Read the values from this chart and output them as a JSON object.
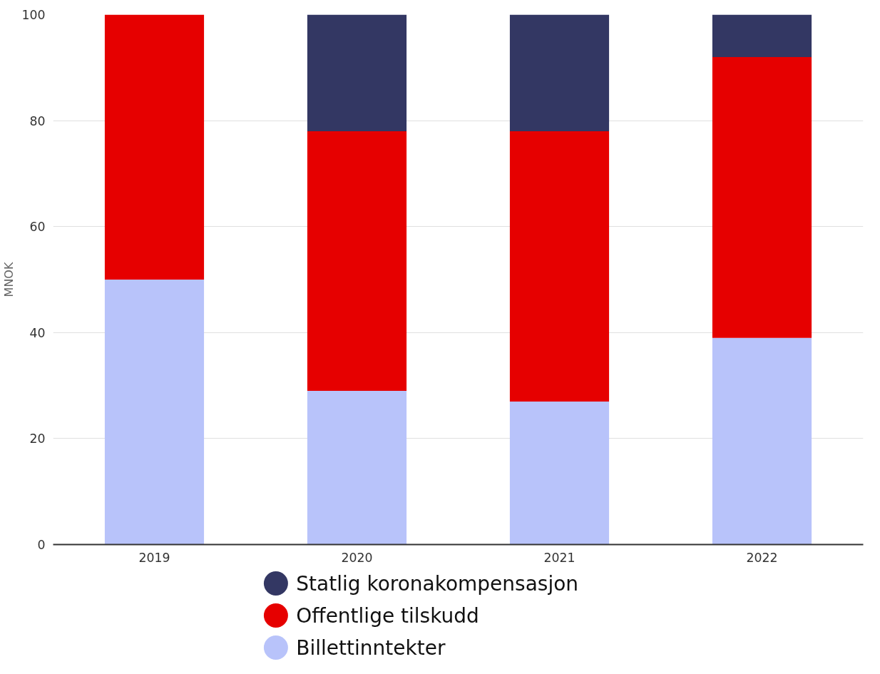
{
  "chart_data": {
    "type": "bar",
    "stacked": true,
    "ylabel": "MNOK",
    "categories": [
      "2019",
      "2020",
      "2021",
      "2022"
    ],
    "series": [
      {
        "name": "Billettinntekter",
        "color": "#b8c3fa",
        "values": [
          50,
          29,
          27,
          39
        ]
      },
      {
        "name": "Offentlige tilskudd",
        "color": "#e60000",
        "values": [
          50,
          49,
          51,
          53
        ]
      },
      {
        "name": "Statlig koronakompensasjon",
        "color": "#333763",
        "values": [
          0,
          22,
          22,
          8
        ]
      }
    ],
    "ylim": [
      0,
      100
    ],
    "yticks": [
      0,
      20,
      40,
      60,
      80,
      100
    ],
    "grid": "y",
    "legend": "bottom"
  }
}
